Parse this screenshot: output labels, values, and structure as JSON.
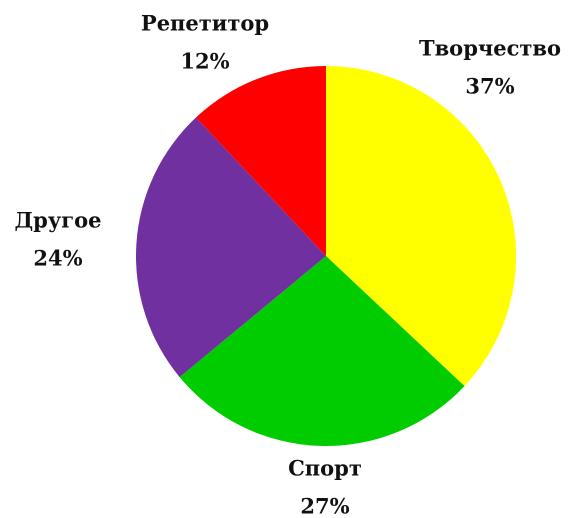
{
  "chart_data": {
    "type": "pie",
    "categories": [
      "Творчество",
      "Спорт",
      "Другое",
      "Репетитор"
    ],
    "values": [
      37,
      27,
      24,
      12
    ],
    "value_labels": [
      "37%",
      "27%",
      "24%",
      "12%"
    ],
    "colors": [
      "#ffff00",
      "#00cc00",
      "#7030a0",
      "#ff0000"
    ]
  }
}
